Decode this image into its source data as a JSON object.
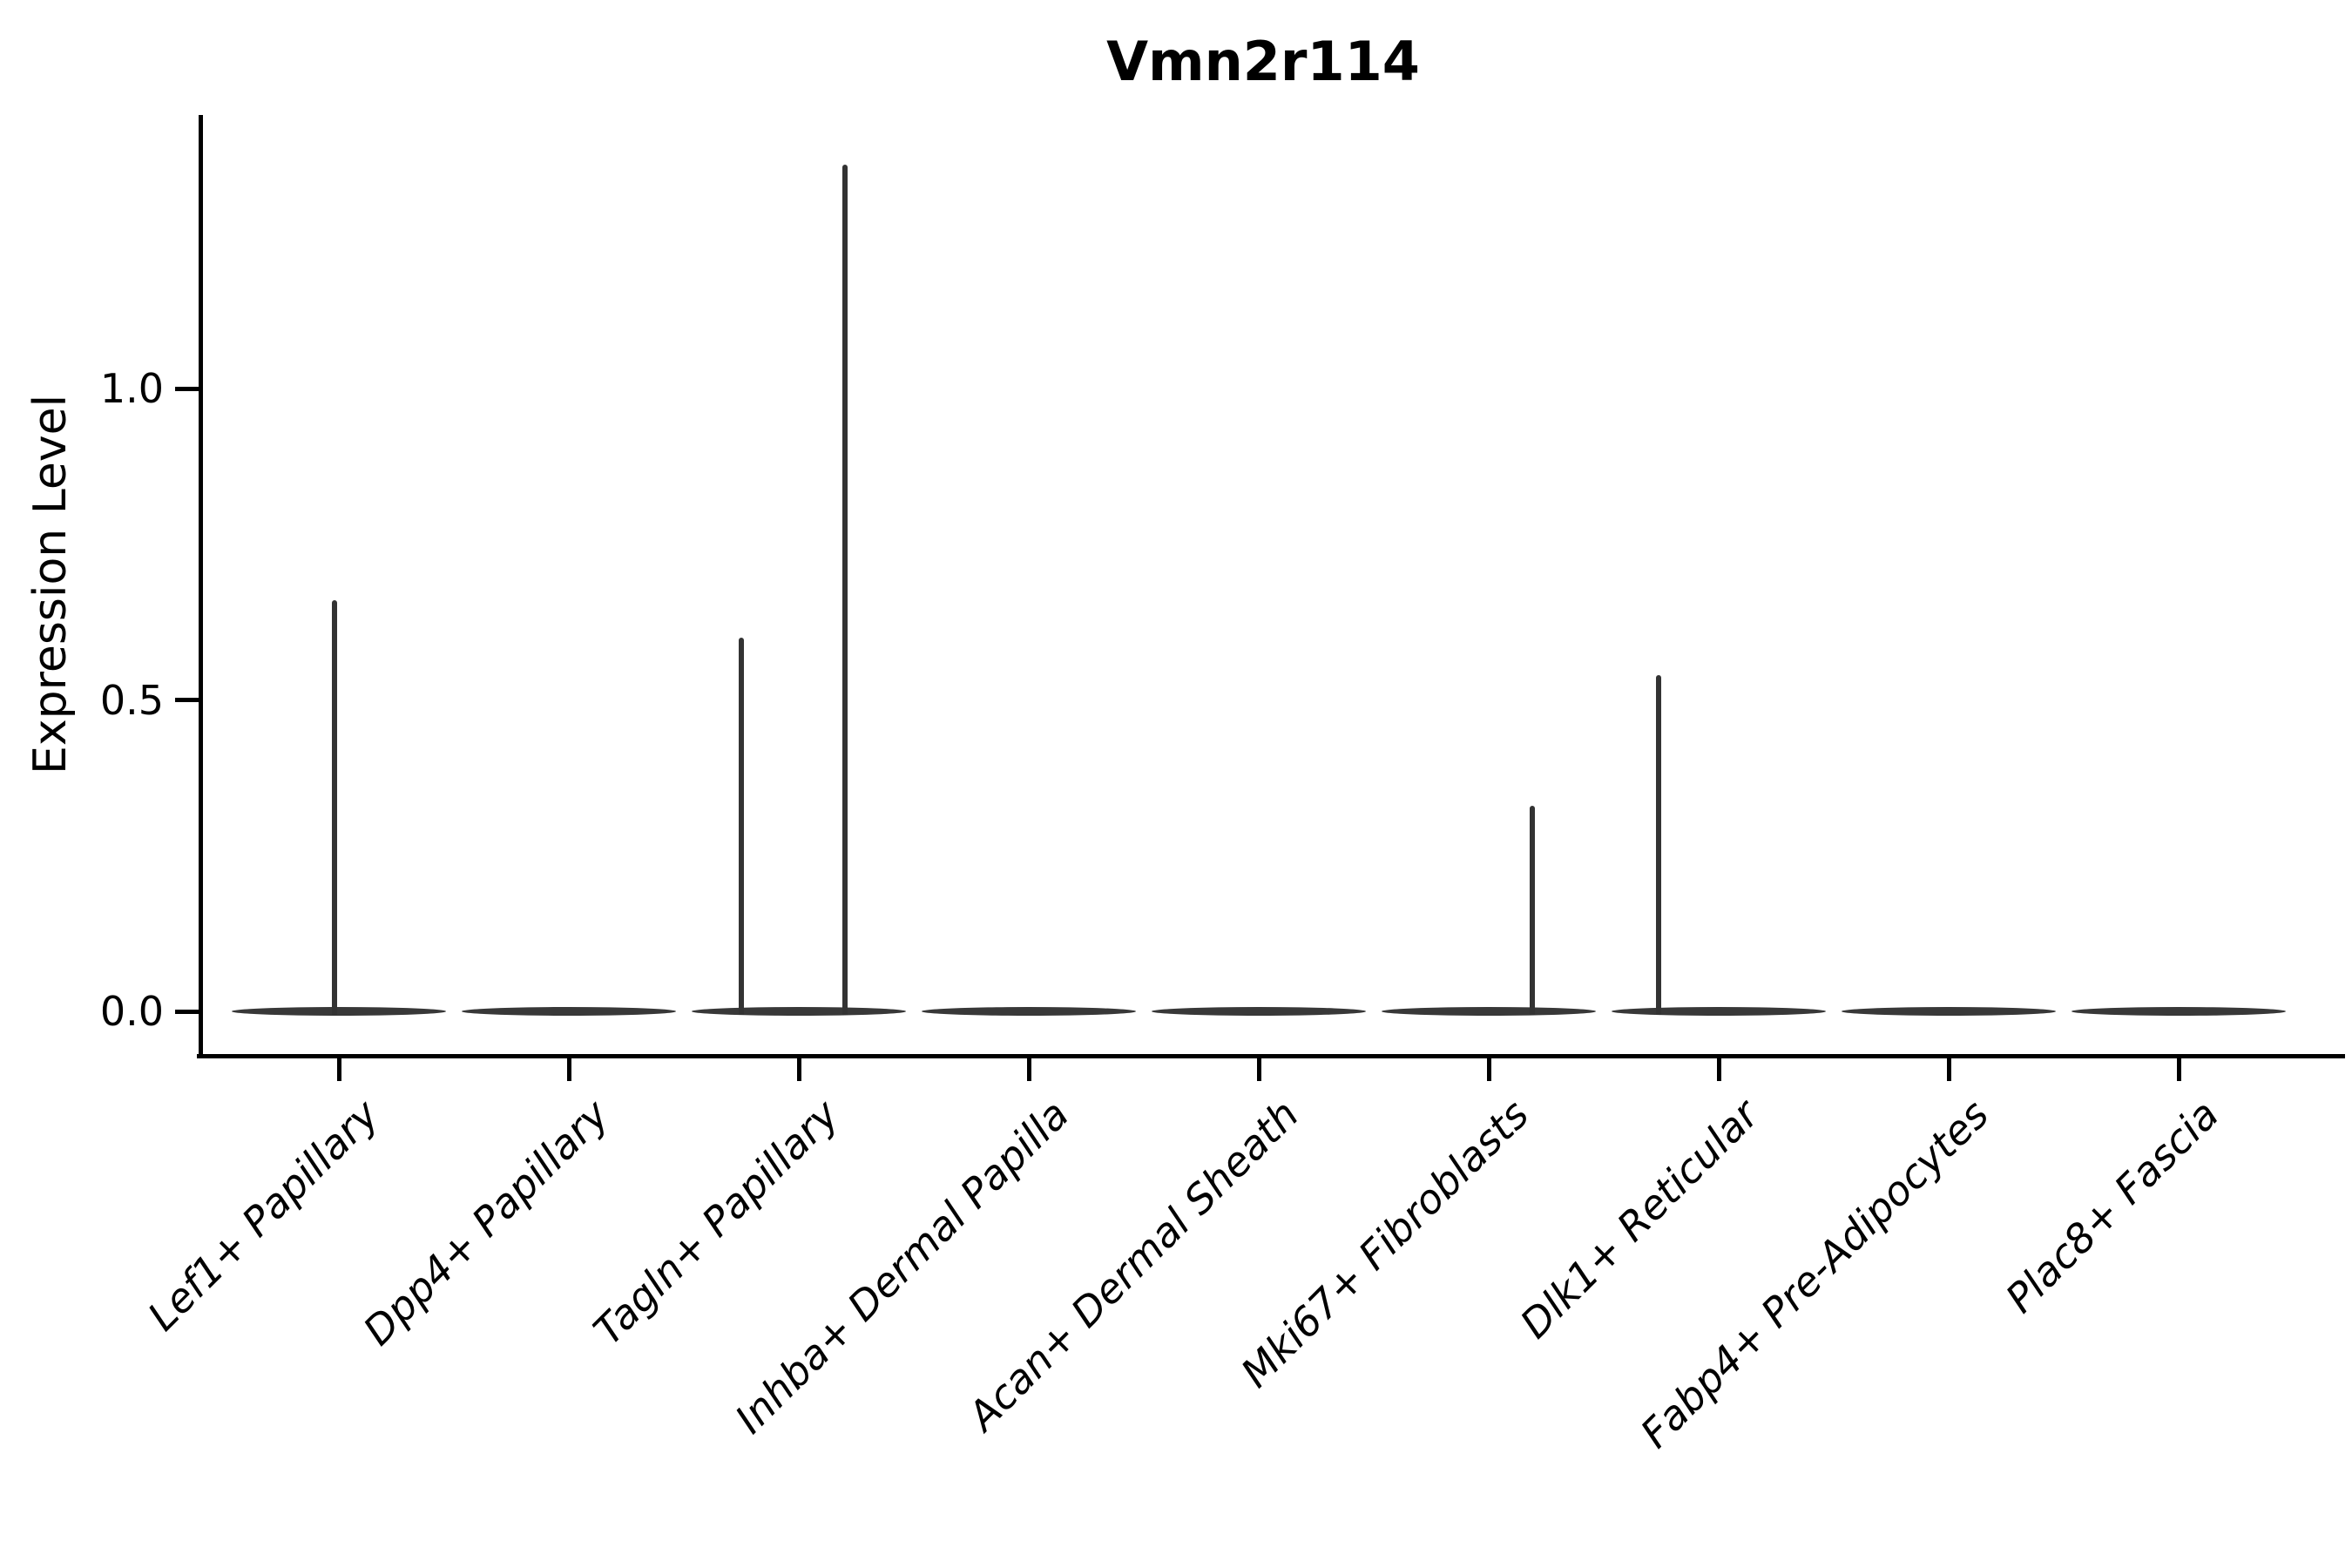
{
  "figure": {
    "title": "Vmn2r114",
    "ylabel": "Expression Level",
    "xlabel": ""
  },
  "colors": {
    "background": "#ffffff",
    "axis": "#000000",
    "text": "#000000",
    "violin": "#383838",
    "spike": "#333333"
  },
  "chart_data": {
    "type": "violin",
    "title": "Vmn2r114",
    "xlabel": "",
    "ylabel": "Expression Level",
    "ylim": [
      -0.07,
      1.44
    ],
    "yticks": [
      {
        "value": 0.0,
        "label": "0.0"
      },
      {
        "value": 0.5,
        "label": "0.5"
      },
      {
        "value": 1.0,
        "label": "1.0"
      }
    ],
    "grid": false,
    "legend": null,
    "categories": [
      "Lef1+ Papillary",
      "Dpp4+ Papillary",
      "Tagln+ Papillary",
      "Inhba+ Dermal Papilla",
      "Acan+ Dermal Sheath",
      "Mki67+ Fibroblasts",
      "Dlk1+ Reticular",
      "Fabp4+ Pre-Adipocytes",
      "Plac8+ Fascia"
    ],
    "violins": [
      {
        "category": "Lef1+ Papillary",
        "baseline_value": 0,
        "spikes": [
          {
            "value": 0.66,
            "x_offset_frac": -0.02
          }
        ]
      },
      {
        "category": "Dpp4+ Papillary",
        "baseline_value": 0,
        "spikes": []
      },
      {
        "category": "Tagln+ Papillary",
        "baseline_value": 0,
        "spikes": [
          {
            "value": 0.6,
            "x_offset_frac": -0.25
          },
          {
            "value": 1.36,
            "x_offset_frac": 0.2
          }
        ]
      },
      {
        "category": "Inhba+ Dermal Papilla",
        "baseline_value": 0,
        "spikes": []
      },
      {
        "category": "Acan+ Dermal Sheath",
        "baseline_value": 0,
        "spikes": []
      },
      {
        "category": "Mki67+ Fibroblasts",
        "baseline_value": 0,
        "spikes": [
          {
            "value": 0.33,
            "x_offset_frac": 0.19
          }
        ]
      },
      {
        "category": "Dlk1+ Reticular",
        "baseline_value": 0,
        "spikes": [
          {
            "value": 0.54,
            "x_offset_frac": -0.26
          }
        ]
      },
      {
        "category": "Fabp4+ Pre-Adipocytes",
        "baseline_value": 0,
        "spikes": []
      },
      {
        "category": "Plac8+ Fascia",
        "baseline_value": 0,
        "spikes": []
      }
    ]
  }
}
